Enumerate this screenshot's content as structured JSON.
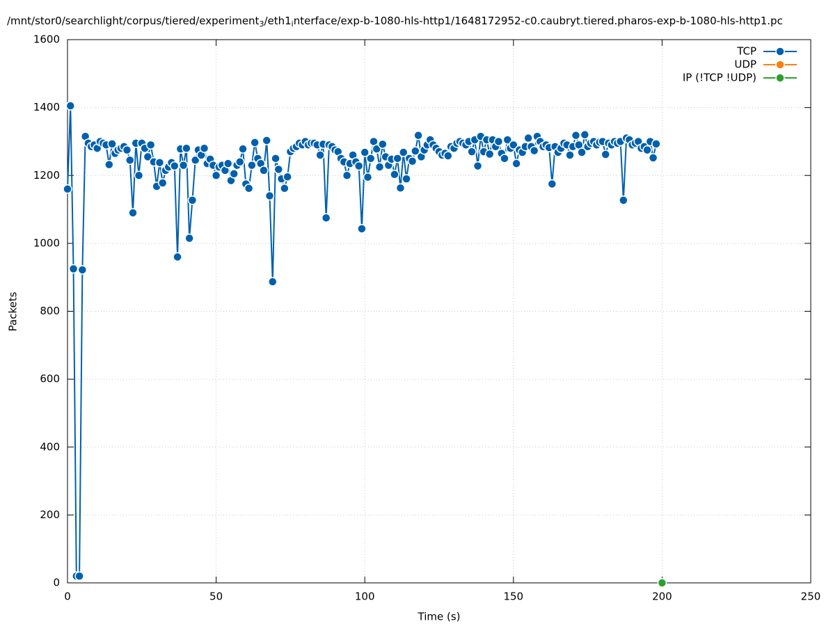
{
  "chart_data": {
    "type": "line",
    "title": [
      "/mnt/stor0/searchlight/corpus/tiered/experiment",
      "3",
      "/eth1",
      "i",
      "nterface/exp-b-1080-hls-http1/1648172952-c0.caubryt.tiered.pharos-exp-b-1080-hls-http1.pc"
    ],
    "x_label": "Time (s)",
    "y_label": "Packets",
    "xlim": [
      0,
      250
    ],
    "xticks": [
      0,
      50,
      100,
      150,
      200,
      250
    ],
    "ylim": [
      0,
      1600
    ],
    "yticks": [
      0,
      200,
      400,
      600,
      800,
      1000,
      1200,
      1400,
      1600
    ],
    "grid": true,
    "legend": "top-right",
    "series": [
      {
        "name": "TCP",
        "color": "#0060ad",
        "x": [
          0,
          1,
          2,
          3,
          4,
          5,
          6,
          7,
          8,
          9,
          10,
          11,
          12,
          13,
          14,
          15,
          16,
          17,
          18,
          19,
          20,
          21,
          22,
          23,
          24,
          25,
          26,
          27,
          28,
          29,
          30,
          31,
          32,
          33,
          34,
          35,
          36,
          37,
          38,
          39,
          40,
          41,
          42,
          43,
          44,
          45,
          46,
          47,
          48,
          49,
          50,
          51,
          52,
          53,
          54,
          55,
          56,
          57,
          58,
          59,
          60,
          61,
          62,
          63,
          64,
          65,
          66,
          67,
          68,
          69,
          70,
          71,
          72,
          73,
          74,
          75,
          76,
          77,
          78,
          79,
          80,
          81,
          82,
          83,
          84,
          85,
          86,
          87,
          88,
          89,
          90,
          91,
          92,
          93,
          94,
          95,
          96,
          97,
          98,
          99,
          100,
          101,
          102,
          103,
          104,
          105,
          106,
          107,
          108,
          109,
          110,
          111,
          112,
          113,
          114,
          115,
          116,
          117,
          118,
          119,
          120,
          121,
          122,
          123,
          124,
          125,
          126,
          127,
          128,
          129,
          130,
          131,
          132,
          133,
          134,
          135,
          136,
          137,
          138,
          139,
          140,
          141,
          142,
          143,
          144,
          145,
          146,
          147,
          148,
          149,
          150,
          151,
          152,
          153,
          154,
          155,
          156,
          157,
          158,
          159,
          160,
          161,
          162,
          163,
          164,
          165,
          166,
          167,
          168,
          169,
          170,
          171,
          172,
          173,
          174,
          175,
          176,
          177,
          178,
          179,
          180,
          181,
          182,
          183,
          184,
          185,
          186,
          187,
          188,
          189,
          190,
          191,
          192,
          193,
          194,
          195,
          196,
          197,
          198
        ],
        "values": [
          1160,
          1405,
          925,
          20,
          20,
          922,
          1315,
          1295,
          1285,
          1290,
          1280,
          1300,
          1295,
          1290,
          1232,
          1293,
          1265,
          1275,
          1280,
          1285,
          1275,
          1245,
          1090,
          1295,
          1200,
          1295,
          1280,
          1255,
          1290,
          1240,
          1168,
          1238,
          1178,
          1215,
          1225,
          1238,
          1228,
          960,
          1278,
          1230,
          1280,
          1015,
          1127,
          1245,
          1275,
          1260,
          1280,
          1235,
          1248,
          1230,
          1200,
          1225,
          1230,
          1215,
          1235,
          1185,
          1205,
          1230,
          1240,
          1278,
          1175,
          1162,
          1230,
          1297,
          1250,
          1235,
          1215,
          1303,
          1140,
          887,
          1250,
          1218,
          1190,
          1162,
          1196,
          1270,
          1280,
          1285,
          1295,
          1290,
          1300,
          1290,
          1295,
          1295,
          1290,
          1260,
          1292,
          1075,
          1290,
          1285,
          1275,
          1270,
          1250,
          1240,
          1200,
          1235,
          1260,
          1240,
          1228,
          1043,
          1268,
          1195,
          1250,
          1300,
          1278,
          1225,
          1292,
          1255,
          1230,
          1248,
          1203,
          1250,
          1163,
          1268,
          1190,
          1250,
          1242,
          1272,
          1318,
          1255,
          1275,
          1290,
          1305,
          1290,
          1280,
          1270,
          1260,
          1265,
          1258,
          1285,
          1280,
          1295,
          1300,
          1295,
          1290,
          1300,
          1270,
          1305,
          1228,
          1315,
          1270,
          1305,
          1263,
          1305,
          1285,
          1300,
          1265,
          1250,
          1305,
          1280,
          1290,
          1235,
          1275,
          1268,
          1285,
          1310,
          1285,
          1273,
          1315,
          1300,
          1285,
          1290,
          1282,
          1175,
          1285,
          1268,
          1280,
          1295,
          1290,
          1260,
          1285,
          1318,
          1290,
          1268,
          1320,
          1285,
          1295,
          1300,
          1290,
          1298,
          1300,
          1262,
          1295,
          1290,
          1300,
          1295,
          1300,
          1127,
          1310,
          1305,
          1290,
          1295,
          1300,
          1280,
          1285,
          1275,
          1300,
          1252,
          1293
        ]
      },
      {
        "name": "UDP",
        "color": "#ff7f0e",
        "x": [],
        "values": []
      },
      {
        "name": "IP (!TCP  !UDP)",
        "color": "#2ca02c",
        "x": [
          200
        ],
        "values": [
          0
        ]
      }
    ]
  }
}
